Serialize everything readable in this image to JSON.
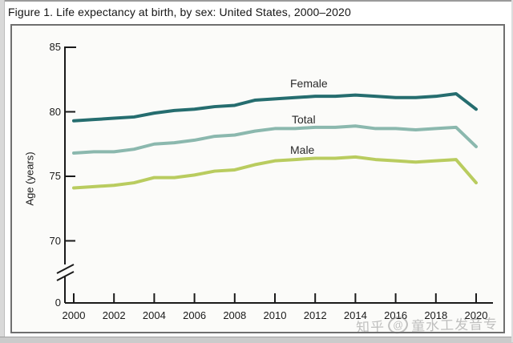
{
  "page": {
    "title": "Figure 1. Life expectancy at birth, by sex: United States, 2000–2020"
  },
  "watermark": {
    "site": "知乎",
    "logo": "@",
    "handle": "童水工发音专"
  },
  "chart_data": {
    "type": "line",
    "title": "Figure 1. Life expectancy at birth, by sex: United States, 2000–2020",
    "xlabel": "",
    "ylabel": "Age (years)",
    "ylim": [
      70,
      85
    ],
    "ylim_note": "y-axis broken between 0 and 70",
    "grid": false,
    "legend_position": "inline labels above lines",
    "x": [
      2000,
      2001,
      2002,
      2003,
      2004,
      2005,
      2006,
      2007,
      2008,
      2009,
      2010,
      2011,
      2012,
      2013,
      2014,
      2015,
      2016,
      2017,
      2018,
      2019,
      2020
    ],
    "x_tick_labels": [
      "2000",
      "2002",
      "2004",
      "2006",
      "2008",
      "2010",
      "2012",
      "2014",
      "2016",
      "2018",
      "2020"
    ],
    "y_tick_labels": [
      "85",
      "80",
      "75",
      "70"
    ],
    "y_origin_label": "0",
    "series": [
      {
        "name": "Female",
        "color": "#256d6f",
        "values": [
          79.3,
          79.4,
          79.5,
          79.6,
          79.9,
          80.1,
          80.2,
          80.4,
          80.5,
          80.9,
          81.0,
          81.1,
          81.2,
          81.2,
          81.3,
          81.2,
          81.1,
          81.1,
          81.2,
          81.4,
          80.2
        ]
      },
      {
        "name": "Total",
        "color": "#8bb8ae",
        "values": [
          76.8,
          76.9,
          76.9,
          77.1,
          77.5,
          77.6,
          77.8,
          78.1,
          78.2,
          78.5,
          78.7,
          78.7,
          78.8,
          78.8,
          78.9,
          78.7,
          78.7,
          78.6,
          78.7,
          78.8,
          77.3
        ]
      },
      {
        "name": "Male",
        "color": "#b9cc5f",
        "values": [
          74.1,
          74.2,
          74.3,
          74.5,
          74.9,
          74.9,
          75.1,
          75.4,
          75.5,
          75.9,
          76.2,
          76.3,
          76.4,
          76.4,
          76.5,
          76.3,
          76.2,
          76.1,
          76.2,
          76.3,
          74.5
        ]
      }
    ]
  }
}
